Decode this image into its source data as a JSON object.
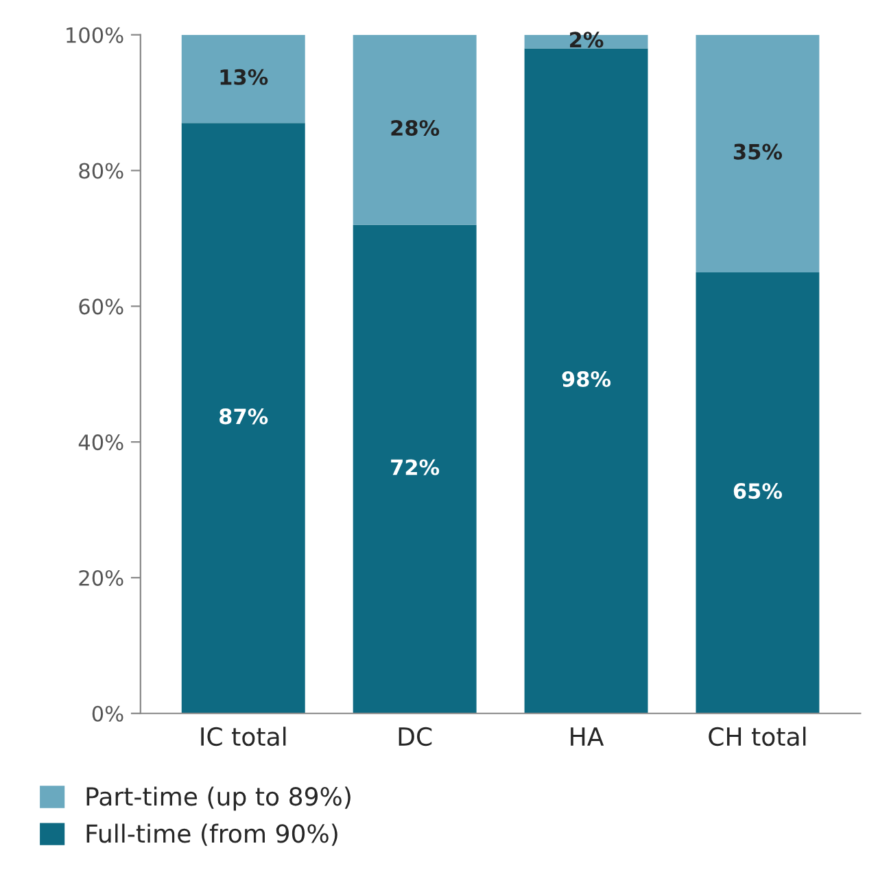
{
  "chart_data": {
    "type": "bar",
    "stacked": true,
    "categories": [
      "IC total",
      "DC",
      "HA",
      "CH total"
    ],
    "series": [
      {
        "name": "Full-time (from 90%)",
        "color": "#0e6a82",
        "values": [
          87,
          72,
          98,
          65
        ],
        "value_labels": [
          "87%",
          "72%",
          "98%",
          "65%"
        ]
      },
      {
        "name": "Part-time (up to 89%)",
        "color": "#6aa9bf",
        "values": [
          13,
          28,
          2,
          35
        ],
        "value_labels": [
          "13%",
          "28%",
          "2%",
          "35%"
        ]
      }
    ],
    "ylim": [
      0,
      100
    ],
    "yticks": [
      {
        "value": 0,
        "label": "0%"
      },
      {
        "value": 20,
        "label": "20%"
      },
      {
        "value": 40,
        "label": "40%"
      },
      {
        "value": 60,
        "label": "60%"
      },
      {
        "value": 80,
        "label": "80%"
      },
      {
        "value": 100,
        "label": "100%"
      }
    ],
    "legend": "bottom",
    "grid": false
  }
}
